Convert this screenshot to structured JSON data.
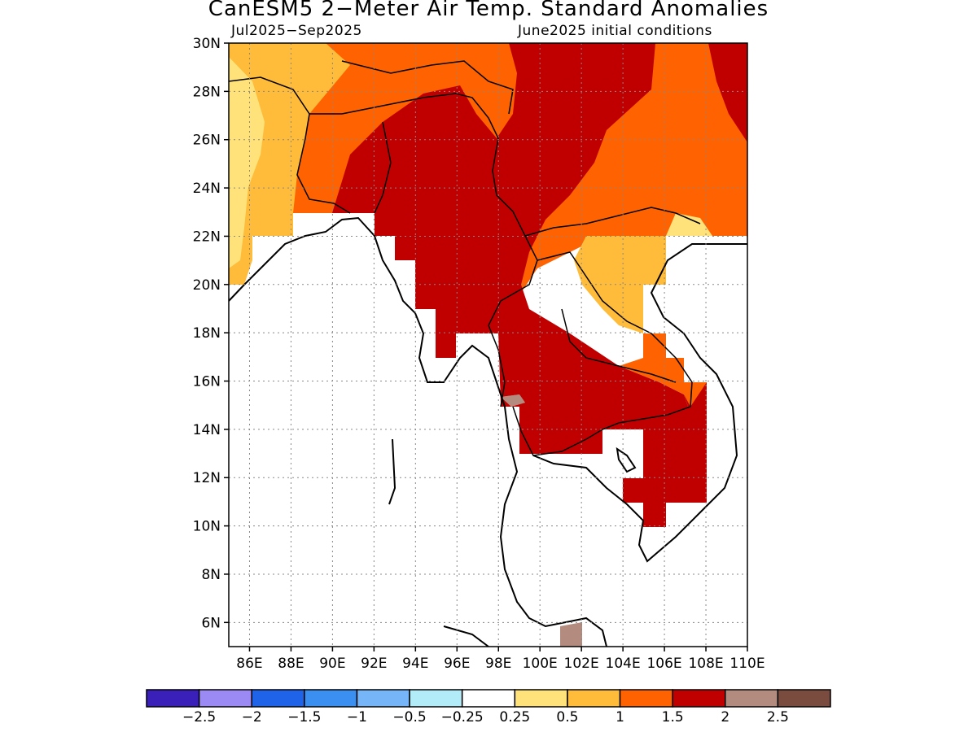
{
  "title": "CanESM5 2−Meter Air Temp. Standard Anomalies",
  "period": "Jul2025−Sep2025",
  "init": "June2025 initial conditions",
  "lat_labels": [
    "30N",
    "28N",
    "26N",
    "24N",
    "22N",
    "20N",
    "18N",
    "16N",
    "14N",
    "12N",
    "10N",
    "8N",
    "6N"
  ],
  "lat_values": [
    30,
    28,
    26,
    24,
    22,
    20,
    18,
    16,
    14,
    12,
    10,
    8,
    6
  ],
  "lon_labels": [
    "86E",
    "88E",
    "90E",
    "92E",
    "94E",
    "96E",
    "98E",
    "100E",
    "102E",
    "104E",
    "106E",
    "108E",
    "110E"
  ],
  "lon_values": [
    86,
    88,
    90,
    92,
    94,
    96,
    98,
    100,
    102,
    104,
    106,
    108,
    110
  ],
  "extent": {
    "lon_min": 85,
    "lon_max": 110,
    "lat_min": 5,
    "lat_max": 30
  },
  "colorbar": {
    "colors": [
      "#3a1fb8",
      "#9b8af3",
      "#1f63e8",
      "#3a8ff0",
      "#76b6f8",
      "#b2ecf8",
      "#ffffff",
      "#ffe27a",
      "#ffbb3a",
      "#ff6200",
      "#c00000",
      "#b38b7f",
      "#7a4c3f"
    ],
    "labels": [
      "−2.5",
      "−2",
      "−1.5",
      "−1",
      "−0.5",
      "−0.25",
      "0.25",
      "0.5",
      "1",
      "1.5",
      "2",
      "2.5"
    ]
  }
}
